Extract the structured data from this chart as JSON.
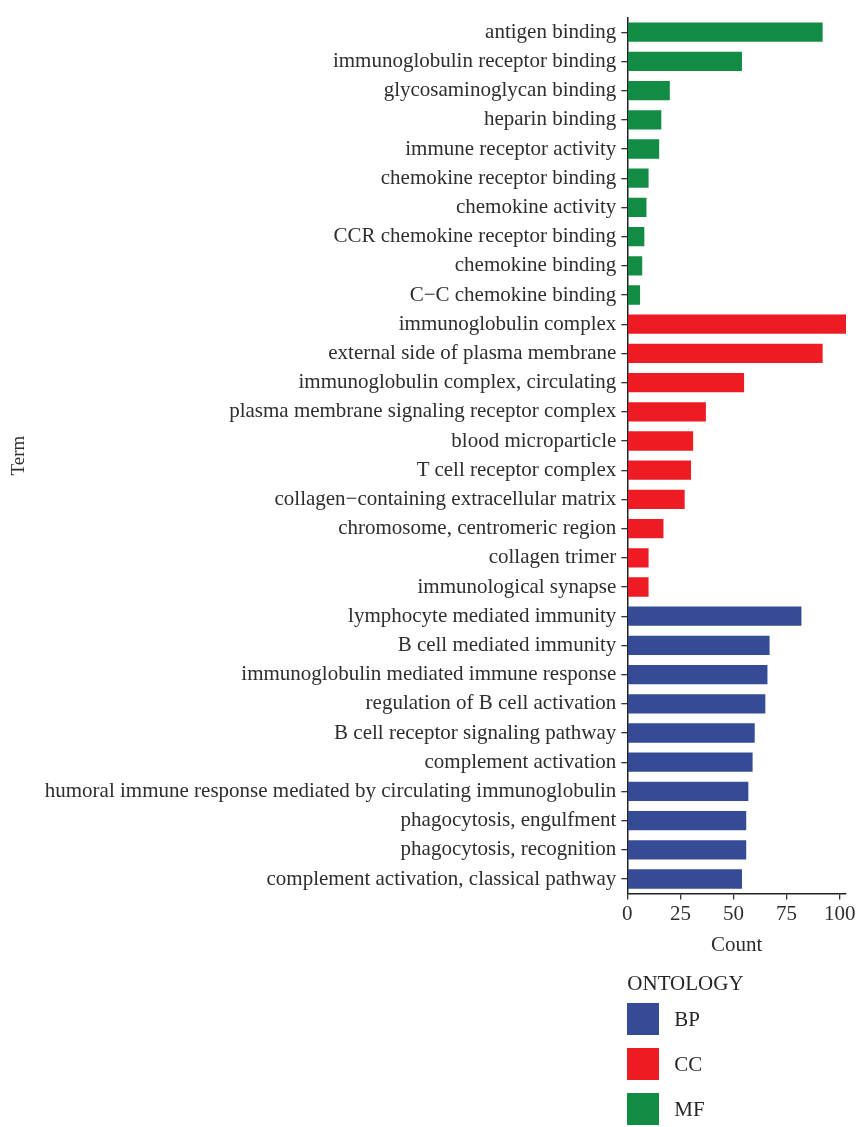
{
  "chart_data": {
    "type": "bar",
    "orientation": "horizontal",
    "categories": [
      "antigen binding",
      "immunoglobulin receptor binding",
      "glycosaminoglycan binding",
      "heparin binding",
      "immune receptor activity",
      "chemokine receptor binding",
      "chemokine activity",
      "CCR chemokine receptor binding",
      "chemokine binding",
      "C−C chemokine binding",
      "immunoglobulin complex",
      "external side of plasma membrane",
      "immunoglobulin complex, circulating",
      "plasma membrane signaling receptor complex",
      "blood microparticle",
      "T cell receptor complex",
      "collagen−containing extracellular matrix",
      "chromosome, centromeric region",
      "collagen trimer",
      "immunological synapse",
      "lymphocyte mediated immunity",
      "B cell mediated immunity",
      "immunoglobulin mediated immune response",
      "regulation of B cell activation",
      "B cell receptor signaling pathway",
      "complement activation",
      "humoral immune response mediated by circulating immunoglobulin",
      "phagocytosis, engulfment",
      "phagocytosis, recognition",
      "complement activation, classical pathway"
    ],
    "series": [
      {
        "name": "BP",
        "color": "#354b95",
        "values": [
          null,
          null,
          null,
          null,
          null,
          null,
          null,
          null,
          null,
          null,
          null,
          null,
          null,
          null,
          null,
          null,
          null,
          null,
          null,
          null,
          82,
          67,
          66,
          65,
          60,
          59,
          57,
          56,
          56,
          54
        ]
      },
      {
        "name": "CC",
        "color": "#ed1c24",
        "values": [
          null,
          null,
          null,
          null,
          null,
          null,
          null,
          null,
          null,
          null,
          103,
          92,
          55,
          37,
          31,
          30,
          27,
          17,
          10,
          10,
          null,
          null,
          null,
          null,
          null,
          null,
          null,
          null,
          null,
          null
        ]
      },
      {
        "name": "MF",
        "color": "#128c44",
        "values": [
          92,
          54,
          20,
          16,
          15,
          10,
          9,
          8,
          7,
          6,
          null,
          null,
          null,
          null,
          null,
          null,
          null,
          null,
          null,
          null,
          null,
          null,
          null,
          null,
          null,
          null,
          null,
          null,
          null,
          null
        ]
      }
    ],
    "xlim": [
      0,
      103
    ],
    "xticks": [
      0,
      25,
      50,
      75,
      100
    ],
    "xlabel": "Count",
    "ylabel": "Term",
    "legend_title": "ONTOLOGY",
    "legend": "bottom",
    "grid": false
  }
}
